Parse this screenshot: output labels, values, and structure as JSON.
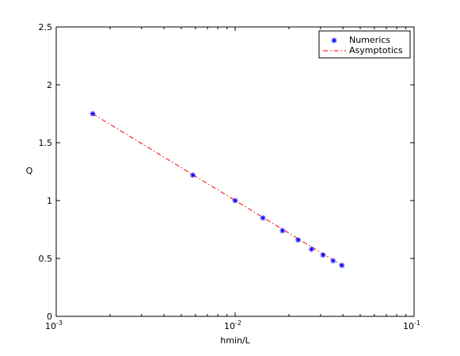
{
  "chart_data": {
    "type": "line",
    "xlabel": "hmin/L",
    "ylabel": "Q",
    "xscale": "log",
    "xlim": [
      0.001,
      0.1
    ],
    "ylim": [
      0,
      2.5
    ],
    "x_ticks": [
      {
        "value": 0.001,
        "base": "10",
        "exp": "-3"
      },
      {
        "value": 0.01,
        "base": "10",
        "exp": "-2"
      },
      {
        "value": 0.1,
        "base": "10",
        "exp": "-1"
      }
    ],
    "y_ticks": [
      {
        "value": 0,
        "label": "0"
      },
      {
        "value": 0.5,
        "label": "0.5"
      },
      {
        "value": 1,
        "label": "1"
      },
      {
        "value": 1.5,
        "label": "1.5"
      },
      {
        "value": 2,
        "label": "2"
      },
      {
        "value": 2.5,
        "label": "2.5"
      }
    ],
    "grid": false,
    "legend_position": "top-right",
    "series": [
      {
        "name": "Numerics",
        "style": "markers",
        "marker": "asterisk",
        "color": "#0000ff",
        "x": [
          0.0016,
          0.0058,
          0.01,
          0.0143,
          0.0184,
          0.0225,
          0.0267,
          0.031,
          0.0353,
          0.0395
        ],
        "y": [
          1.75,
          1.22,
          1.0,
          0.85,
          0.74,
          0.66,
          0.58,
          0.53,
          0.48,
          0.44
        ]
      },
      {
        "name": "Asymptotics",
        "style": "dash-dot",
        "color": "#ff0000",
        "x": [
          0.0016,
          0.0395
        ],
        "y": [
          1.75,
          0.44
        ]
      }
    ]
  }
}
